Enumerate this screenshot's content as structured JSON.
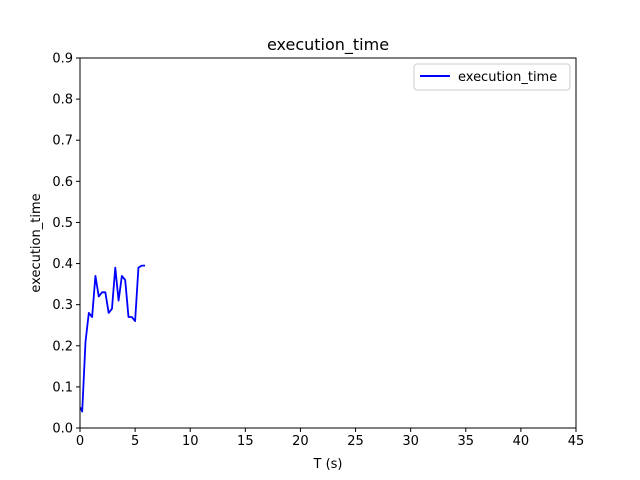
{
  "chart_data": {
    "type": "line",
    "title": "execution_time",
    "xlabel": "T (s)",
    "ylabel": "execution_time",
    "xlim": [
      0,
      45
    ],
    "ylim": [
      0,
      0.9
    ],
    "xticks": [
      0,
      5,
      10,
      15,
      20,
      25,
      30,
      35,
      40,
      45
    ],
    "yticks": [
      0.0,
      0.1,
      0.2,
      0.3,
      0.4,
      0.5,
      0.6,
      0.7,
      0.8,
      0.9
    ],
    "ytick_labels": [
      "0.0",
      "0.1",
      "0.2",
      "0.3",
      "0.4",
      "0.5",
      "0.6",
      "0.7",
      "0.8",
      "0.9"
    ],
    "legend_position": "top-right",
    "grid": false,
    "series": [
      {
        "name": "execution_time",
        "color": "#0000ff",
        "x": [
          0.05,
          0.2,
          0.5,
          0.8,
          1.1,
          1.4,
          1.7,
          2.0,
          2.3,
          2.6,
          2.9,
          3.2,
          3.5,
          3.8,
          4.1,
          4.4,
          4.7,
          5.0,
          5.3,
          5.6,
          5.9
        ],
        "y": [
          0.05,
          0.04,
          0.21,
          0.28,
          0.27,
          0.37,
          0.32,
          0.33,
          0.33,
          0.28,
          0.29,
          0.39,
          0.31,
          0.37,
          0.36,
          0.27,
          0.27,
          0.26,
          0.39,
          0.395,
          0.395
        ]
      }
    ]
  }
}
